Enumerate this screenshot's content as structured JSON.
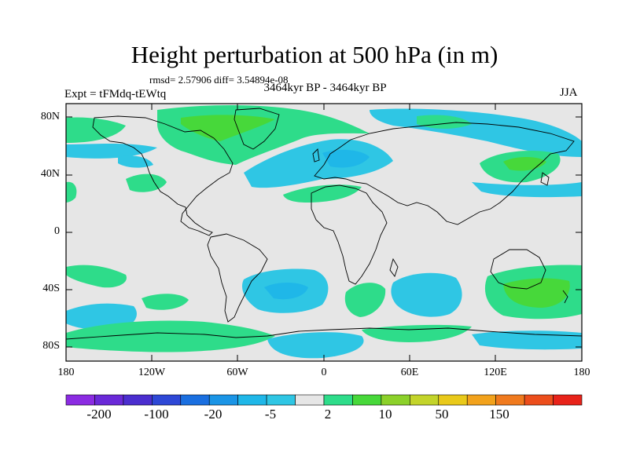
{
  "title": "Height perturbation at 500 hPa (in m)",
  "stats": "rmsd= 2.57906 diff= 3.54894e-08",
  "period": "3464kyr BP - 3464kyr BP",
  "experiment": "Expt = tFMdq-tEWtq",
  "season": "JJA",
  "map": {
    "lat_ticks": [
      "80N",
      "40N",
      "0",
      "40S",
      "80S"
    ],
    "lon_ticks": [
      "180",
      "120W",
      "60W",
      "0",
      "60E",
      "120E",
      "180"
    ]
  },
  "colorbar": {
    "labels": [
      "-200",
      "-100",
      "-20",
      "-5",
      "2",
      "10",
      "50",
      "150"
    ],
    "colors": [
      "#8B2BE2",
      "#6A29D8",
      "#4B2ECF",
      "#2E48D6",
      "#1A6FE0",
      "#1B95E6",
      "#1FB7E8",
      "#2FC6E4",
      "#E6E6E6",
      "#2EDC8A",
      "#47D83A",
      "#8CD12A",
      "#C3D42A",
      "#E9C91A",
      "#F2A21C",
      "#F07A1E",
      "#EC4E1C",
      "#E8231A"
    ]
  },
  "field_colors": {
    "neutral": "#E6E6E6",
    "neg_light": "#2FC6E4",
    "neg_mid": "#1FB7E8",
    "pos_light": "#2EDC8A",
    "pos_mid": "#47D83A"
  }
}
